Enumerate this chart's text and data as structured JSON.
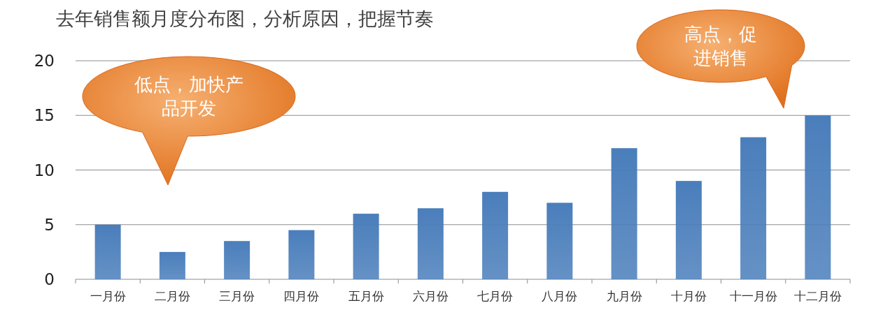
{
  "chart_data": {
    "type": "bar",
    "title": "去年销售额月度分布图，分析原因，把握节奏",
    "categories": [
      "一月份",
      "二月份",
      "三月份",
      "四月份",
      "五月份",
      "六月份",
      "七月份",
      "八月份",
      "九月份",
      "十月份",
      "十一月份",
      "十二月份"
    ],
    "values": [
      5,
      2.5,
      3.5,
      4.5,
      6,
      6.5,
      8,
      7,
      12,
      9,
      13,
      15
    ],
    "color": "#4a7ebb",
    "ylim": [
      0,
      20
    ],
    "yticks": [
      0,
      5,
      10,
      15,
      20
    ],
    "grid": "y",
    "annotations": [
      "低点，加快产品开发",
      "高点，促进销售"
    ]
  }
}
